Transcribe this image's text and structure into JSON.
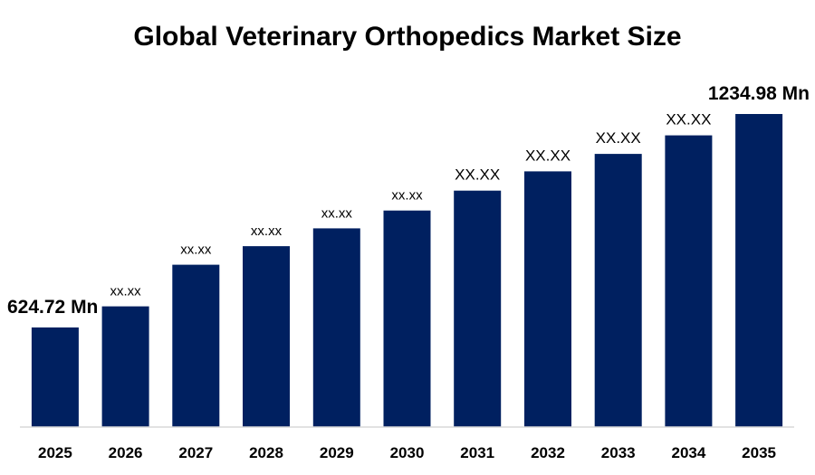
{
  "chart_data": {
    "type": "bar",
    "title": "Global Veterinary Orthopedics Market Size",
    "xlabel": "",
    "ylabel": "",
    "categories": [
      "2025",
      "2026",
      "2027",
      "2028",
      "2029",
      "2030",
      "2031",
      "2032",
      "2033",
      "2034",
      "2035"
    ],
    "values": [
      624.72,
      685,
      804,
      857,
      908,
      959,
      1016,
      1071,
      1121,
      1174,
      1234.98
    ],
    "data_labels": [
      "624.72 Mn",
      "xx.xx",
      "xx.xx",
      "xx.xx",
      "xx.xx",
      "xx.xx",
      "XX.XX",
      "XX.XX",
      "XX.XX",
      "XX.XX",
      "1234.98 Mn"
    ],
    "ylim": [
      340,
      1250
    ],
    "grid": false,
    "legend": "none",
    "bar_color": "#002060",
    "axis_color": "#d9d9d9"
  }
}
